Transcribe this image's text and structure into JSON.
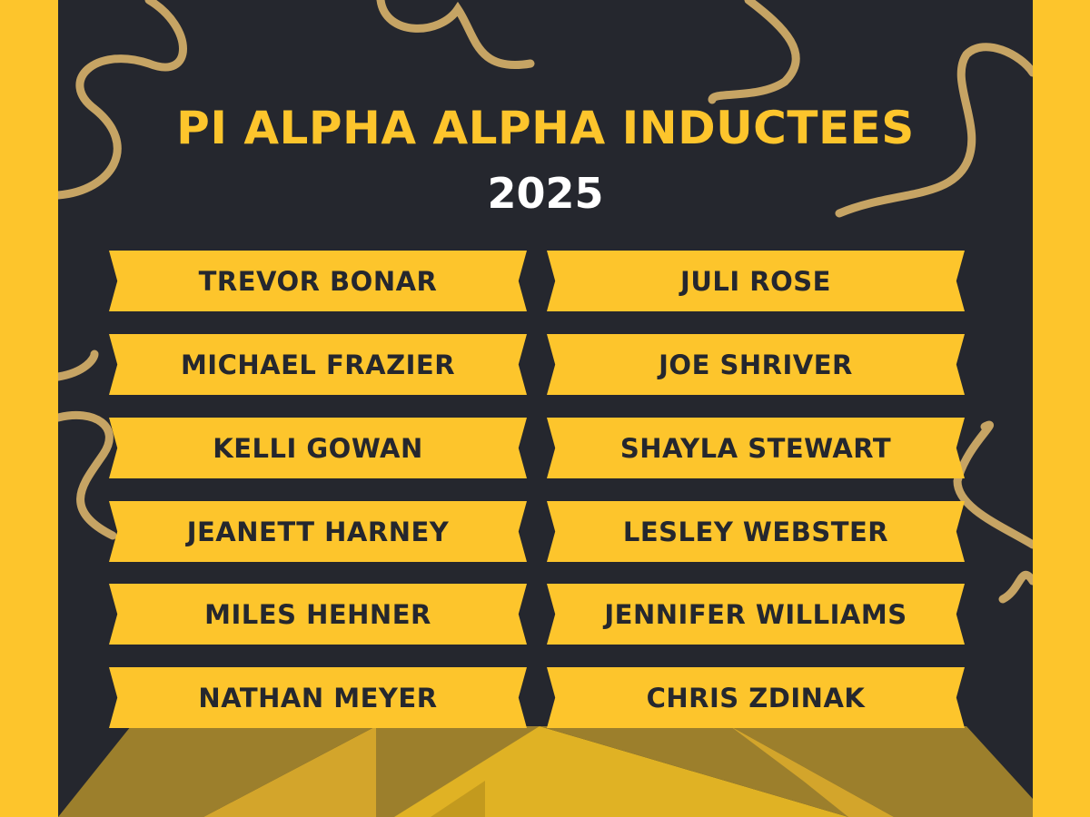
{
  "poster": {
    "title": "PI ALPHA ALPHA INDUCTEES",
    "year": "2025",
    "colors": {
      "accent": "#fdc52c",
      "background": "#25272e",
      "year_text": "#ffffff"
    },
    "inductees_left": [
      "TREVOR BONAR",
      "MICHAEL FRAZIER",
      "KELLI GOWAN",
      "JEANETT HARNEY",
      "MILES HEHNER",
      "NATHAN MEYER"
    ],
    "inductees_right": [
      "JULI ROSE",
      "JOE SHRIVER",
      "SHAYLA STEWART",
      "LESLEY WEBSTER",
      "JENNIFER WILLIAMS",
      "CHRIS ZDINAK"
    ]
  }
}
